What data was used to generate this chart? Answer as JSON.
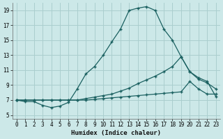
{
  "xlabel": "Humidex (Indice chaleur)",
  "bg_color": "#cce8e8",
  "grid_color": "#aacece",
  "line_color": "#1a6060",
  "xlim": [
    -0.5,
    23.5
  ],
  "ylim": [
    4.5,
    20.0
  ],
  "xticks": [
    0,
    1,
    2,
    3,
    4,
    5,
    6,
    7,
    8,
    9,
    10,
    11,
    12,
    13,
    14,
    15,
    16,
    17,
    18,
    19,
    20,
    21,
    22,
    23
  ],
  "yticks": [
    5,
    7,
    9,
    11,
    13,
    15,
    17,
    19
  ],
  "line1_x": [
    0,
    1,
    2,
    3,
    4,
    5,
    6,
    7,
    8,
    9,
    10,
    11,
    12,
    13,
    14,
    15,
    16,
    17,
    18,
    19,
    20,
    21,
    22,
    23
  ],
  "line1_y": [
    7.0,
    6.8,
    6.8,
    6.3,
    6.0,
    6.2,
    6.7,
    8.5,
    10.5,
    11.5,
    13.0,
    14.8,
    16.5,
    19.0,
    19.3,
    19.5,
    19.0,
    16.5,
    15.0,
    12.8,
    10.8,
    10.0,
    9.5,
    7.5
  ],
  "line2_x": [
    0,
    1,
    2,
    3,
    4,
    5,
    6,
    7,
    8,
    9,
    10,
    11,
    12,
    13,
    14,
    15,
    16,
    17,
    18,
    19,
    20,
    21,
    22,
    23
  ],
  "line2_y": [
    7.0,
    7.0,
    7.0,
    7.0,
    7.0,
    7.0,
    7.0,
    7.0,
    7.2,
    7.4,
    7.6,
    7.8,
    8.2,
    8.6,
    9.2,
    9.7,
    10.2,
    10.8,
    11.5,
    12.8,
    10.8,
    9.8,
    9.3,
    8.5
  ],
  "line3_x": [
    0,
    1,
    2,
    3,
    4,
    5,
    6,
    7,
    8,
    9,
    10,
    11,
    12,
    13,
    14,
    15,
    16,
    17,
    18,
    19,
    20,
    21,
    22,
    23
  ],
  "line3_y": [
    7.0,
    7.0,
    7.0,
    7.0,
    7.0,
    7.0,
    7.0,
    7.0,
    7.0,
    7.1,
    7.2,
    7.3,
    7.4,
    7.5,
    7.6,
    7.7,
    7.8,
    7.9,
    8.0,
    8.1,
    9.5,
    8.5,
    7.8,
    7.8
  ]
}
